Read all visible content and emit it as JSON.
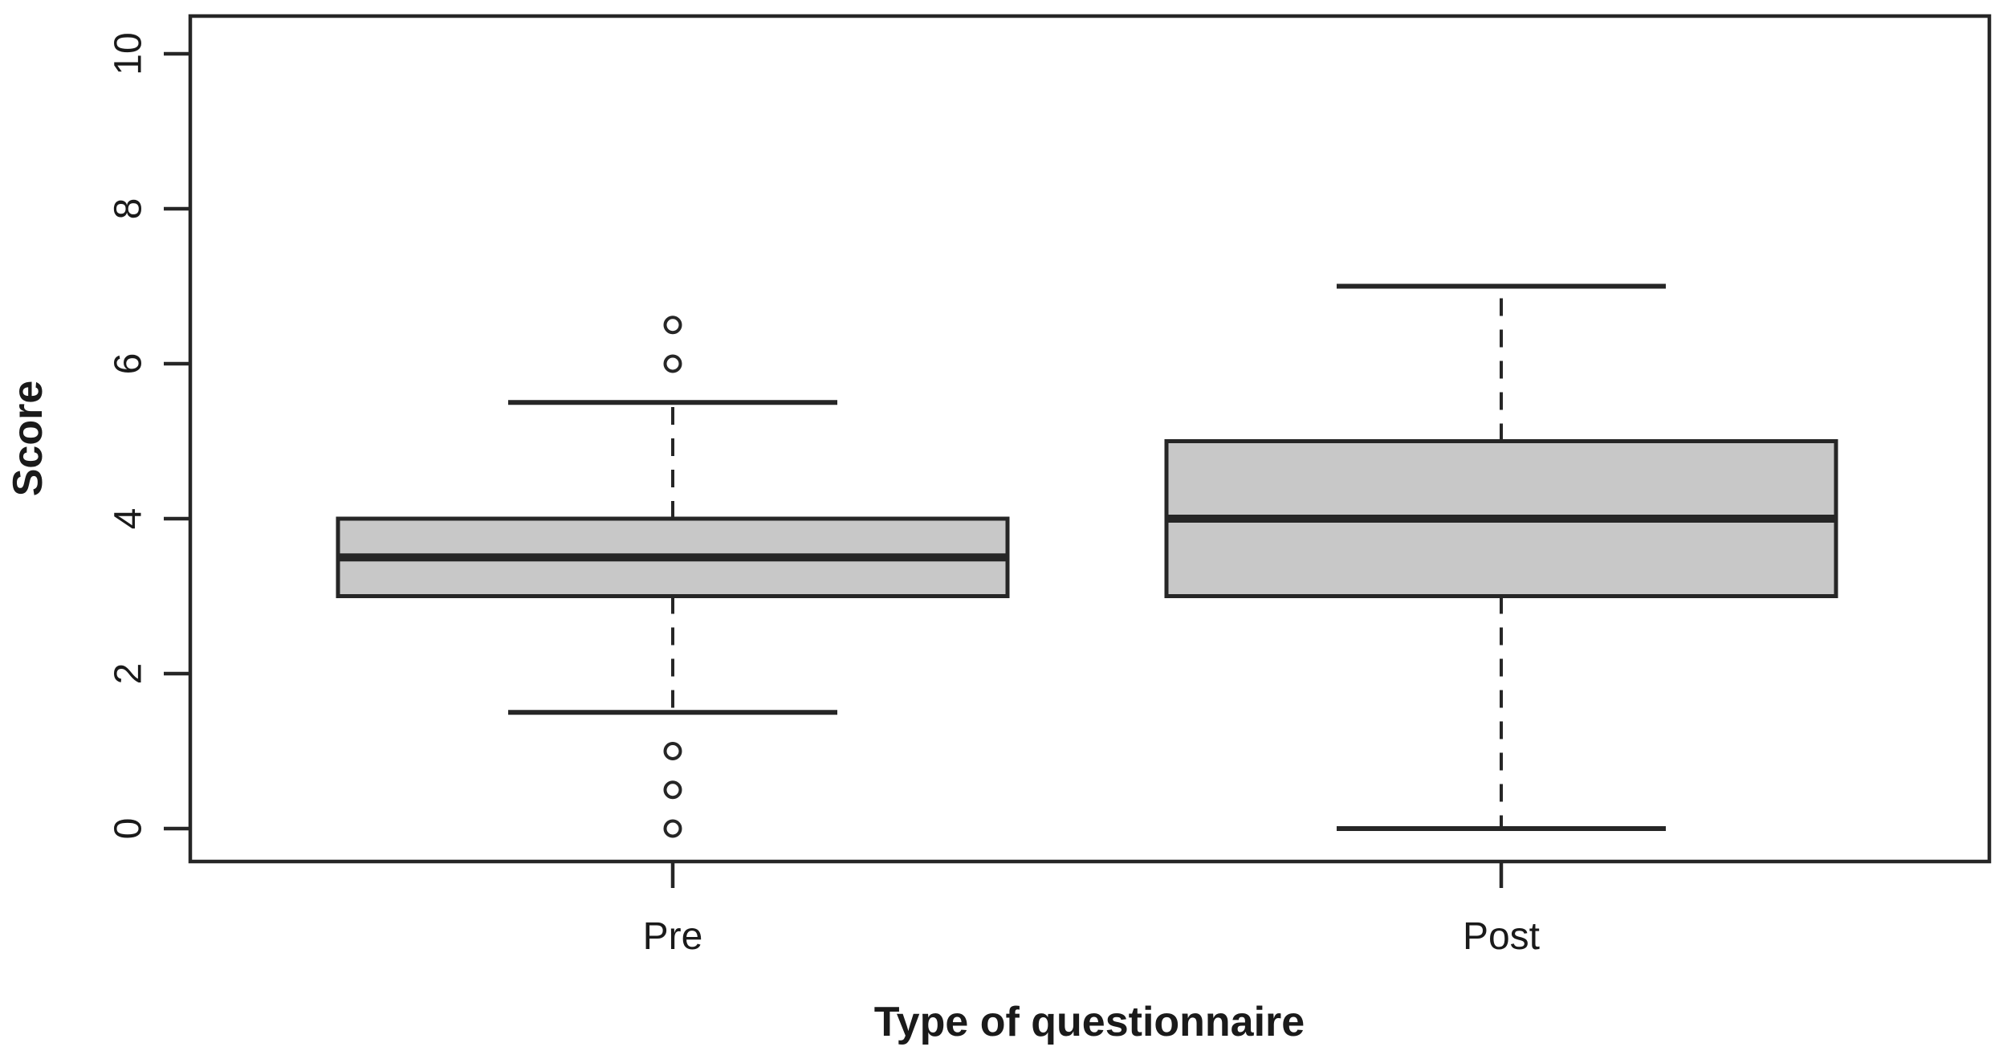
{
  "figure": {
    "background": "#ffffff",
    "plot_background": "#ffffff"
  },
  "chart_data": {
    "type": "boxplot",
    "title": "",
    "xlabel": "Type of questionnaire",
    "ylabel": "Score",
    "ylim": [
      0,
      10
    ],
    "yticks": [
      0,
      2,
      4,
      6,
      8,
      10
    ],
    "grid": false,
    "legend": "none",
    "categories": [
      "Pre",
      "Post"
    ],
    "boxes": [
      {
        "category": "Pre",
        "whisker_low": 1.5,
        "q1": 3,
        "median": 3.5,
        "q3": 4,
        "whisker_high": 5.5,
        "outliers": [
          6.5,
          6,
          1,
          0.5,
          0
        ]
      },
      {
        "category": "Post",
        "whisker_low": 0,
        "q1": 3,
        "median": 4,
        "q3": 5,
        "whisker_high": 7,
        "outliers": []
      }
    ],
    "box_fill": "#c8c8c8",
    "line_color": "#262626",
    "text_color": "#1a1a1a"
  }
}
